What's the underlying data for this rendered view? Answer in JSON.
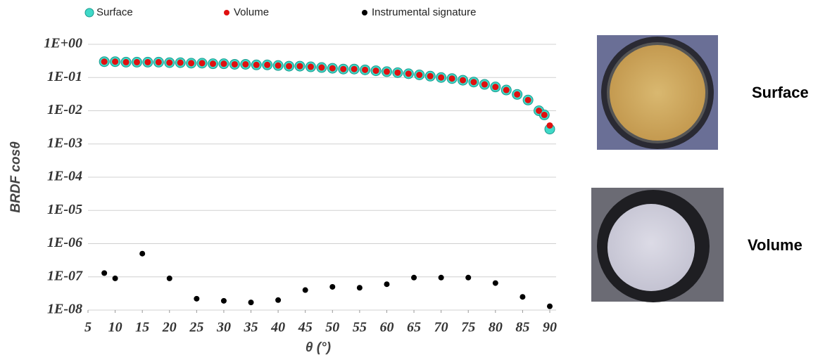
{
  "chart_data": {
    "type": "scatter",
    "x_label": "θ (°)",
    "y_label": "BRDF cosθ",
    "log_y": true,
    "grid": true,
    "xlim": [
      5,
      90
    ],
    "xticks": [
      5,
      10,
      15,
      20,
      25,
      30,
      35,
      40,
      45,
      50,
      55,
      60,
      65,
      70,
      75,
      80,
      85,
      90
    ],
    "ylim": [
      1e-08,
      1
    ],
    "yticks": [
      {
        "value": 1,
        "label": "1E+00"
      },
      {
        "value": 0.1,
        "label": "1E-01"
      },
      {
        "value": 0.01,
        "label": "1E-02"
      },
      {
        "value": 0.001,
        "label": "1E-03"
      },
      {
        "value": 0.0001,
        "label": "1E-04"
      },
      {
        "value": 1e-05,
        "label": "1E-05"
      },
      {
        "value": 1e-06,
        "label": "1E-06"
      },
      {
        "value": 1e-07,
        "label": "1E-07"
      },
      {
        "value": 1e-08,
        "label": "1E-08"
      }
    ],
    "series": [
      {
        "name": "Surface",
        "color": "#3fd9c8",
        "x": [
          8,
          10,
          12,
          14,
          16,
          18,
          20,
          22,
          24,
          26,
          28,
          30,
          32,
          34,
          36,
          38,
          40,
          42,
          44,
          46,
          48,
          50,
          52,
          54,
          56,
          58,
          60,
          62,
          64,
          66,
          68,
          70,
          72,
          74,
          76,
          78,
          80,
          82,
          84,
          86,
          88,
          89,
          90
        ],
        "values": [
          0.3,
          0.3,
          0.29,
          0.29,
          0.29,
          0.29,
          0.28,
          0.28,
          0.27,
          0.27,
          0.26,
          0.26,
          0.25,
          0.25,
          0.24,
          0.24,
          0.23,
          0.22,
          0.22,
          0.21,
          0.2,
          0.19,
          0.18,
          0.18,
          0.17,
          0.16,
          0.15,
          0.14,
          0.13,
          0.12,
          0.11,
          0.1,
          0.093,
          0.083,
          0.073,
          0.062,
          0.052,
          0.042,
          0.031,
          0.021,
          0.01,
          0.0075,
          0.0028
        ]
      },
      {
        "name": "Volume",
        "color": "#e01010",
        "x": [
          8,
          10,
          12,
          14,
          16,
          18,
          20,
          22,
          24,
          26,
          28,
          30,
          32,
          34,
          36,
          38,
          40,
          42,
          44,
          46,
          48,
          50,
          52,
          54,
          56,
          58,
          60,
          62,
          64,
          66,
          68,
          70,
          72,
          74,
          76,
          78,
          80,
          82,
          84,
          86,
          88,
          89,
          90
        ],
        "values": [
          0.3,
          0.3,
          0.29,
          0.29,
          0.29,
          0.29,
          0.28,
          0.28,
          0.27,
          0.27,
          0.26,
          0.26,
          0.25,
          0.25,
          0.24,
          0.24,
          0.23,
          0.22,
          0.22,
          0.21,
          0.2,
          0.19,
          0.18,
          0.18,
          0.17,
          0.16,
          0.15,
          0.14,
          0.13,
          0.12,
          0.11,
          0.1,
          0.093,
          0.083,
          0.073,
          0.062,
          0.052,
          0.042,
          0.031,
          0.021,
          0.01,
          0.0075,
          0.0036
        ]
      },
      {
        "name": "Instrumental signature",
        "color": "#000000",
        "x": [
          8,
          10,
          15,
          20,
          25,
          30,
          35,
          40,
          45,
          50,
          55,
          60,
          65,
          70,
          75,
          80,
          85,
          90
        ],
        "values": [
          1.3e-07,
          9e-08,
          5e-07,
          9e-08,
          2.2e-08,
          1.9e-08,
          1.7e-08,
          2e-08,
          4e-08,
          5e-08,
          4.7e-08,
          6e-08,
          9.5e-08,
          9.5e-08,
          9.5e-08,
          6.5e-08,
          2.5e-08,
          1.3e-08
        ]
      }
    ]
  },
  "photos": [
    {
      "label": "Surface"
    },
    {
      "label": "Volume"
    }
  ]
}
